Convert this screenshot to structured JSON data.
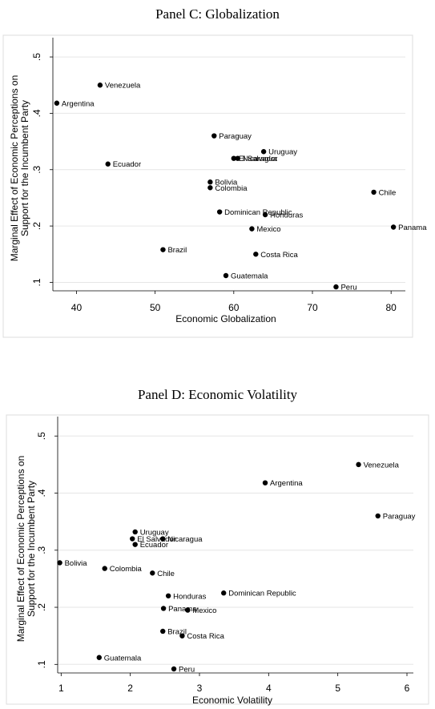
{
  "chart_data": [
    {
      "type": "scatter",
      "title": "Panel C: Globalization",
      "xlabel": "Economic Globalization",
      "ylabel": "Marginal Effect of Economic Perceptions on Support for the Incumbent Party",
      "xlim": [
        37,
        81
      ],
      "ylim": [
        0.085,
        0.52
      ],
      "xticks": [
        "40",
        "50",
        "60",
        "70",
        "80"
      ],
      "xtick_values": [
        40,
        50,
        60,
        70,
        80
      ],
      "yticks": [
        ".1",
        ".2",
        ".3",
        ".4",
        ".5"
      ],
      "ytick_values": [
        0.1,
        0.2,
        0.3,
        0.4,
        0.5
      ],
      "grid": true,
      "points": [
        {
          "label": "Venezuela",
          "x": 43.0,
          "y": 0.45
        },
        {
          "label": "Argentina",
          "x": 37.5,
          "y": 0.418
        },
        {
          "label": "Paraguay",
          "x": 57.5,
          "y": 0.36
        },
        {
          "label": "Uruguay",
          "x": 63.8,
          "y": 0.332
        },
        {
          "label": "El Salvador",
          "x": 60.0,
          "y": 0.32
        },
        {
          "label": "Nicaragua",
          "x": 60.5,
          "y": 0.32
        },
        {
          "label": "Ecuador",
          "x": 44.0,
          "y": 0.31
        },
        {
          "label": "Bolivia",
          "x": 57.0,
          "y": 0.278
        },
        {
          "label": "Colombia",
          "x": 57.0,
          "y": 0.268
        },
        {
          "label": "Chile",
          "x": 77.8,
          "y": 0.26
        },
        {
          "label": "Dominican Republic",
          "x": 58.2,
          "y": 0.225
        },
        {
          "label": "Honduras",
          "x": 64.0,
          "y": 0.22
        },
        {
          "label": "Mexico",
          "x": 62.3,
          "y": 0.195
        },
        {
          "label": "Panama",
          "x": 80.3,
          "y": 0.198
        },
        {
          "label": "Brazil",
          "x": 51.0,
          "y": 0.158
        },
        {
          "label": "Costa Rica",
          "x": 62.8,
          "y": 0.15
        },
        {
          "label": "Guatemala",
          "x": 59.0,
          "y": 0.112
        },
        {
          "label": "Peru",
          "x": 73.0,
          "y": 0.092
        }
      ]
    },
    {
      "type": "scatter",
      "title": "Panel D: Economic Volatility",
      "xlabel": "Economic Volatility",
      "ylabel": "Marginal Effect of Economic Perceptions on Support for the Incumbent Party",
      "xlim": [
        0.95,
        6.0
      ],
      "ylim": [
        0.085,
        0.52
      ],
      "xticks": [
        "1",
        "2",
        "3",
        "4",
        "5",
        "6"
      ],
      "xtick_values": [
        1,
        2,
        3,
        4,
        5,
        6
      ],
      "yticks": [
        ".1",
        ".2",
        ".3",
        ".4",
        ".5"
      ],
      "ytick_values": [
        0.1,
        0.2,
        0.3,
        0.4,
        0.5
      ],
      "grid": true,
      "points": [
        {
          "label": "Venezuela",
          "x": 5.3,
          "y": 0.45
        },
        {
          "label": "Argentina",
          "x": 3.95,
          "y": 0.418
        },
        {
          "label": "Paraguay",
          "x": 5.58,
          "y": 0.36
        },
        {
          "label": "Uruguay",
          "x": 2.07,
          "y": 0.332
        },
        {
          "label": "El Salvador",
          "x": 2.03,
          "y": 0.32
        },
        {
          "label": "Nicaragua",
          "x": 2.47,
          "y": 0.32
        },
        {
          "label": "Ecuador",
          "x": 2.07,
          "y": 0.31
        },
        {
          "label": "Bolivia",
          "x": 0.98,
          "y": 0.278
        },
        {
          "label": "Colombia",
          "x": 1.63,
          "y": 0.268
        },
        {
          "label": "Chile",
          "x": 2.32,
          "y": 0.26
        },
        {
          "label": "Dominican Republic",
          "x": 3.35,
          "y": 0.225
        },
        {
          "label": "Honduras",
          "x": 2.55,
          "y": 0.22
        },
        {
          "label": "Panama",
          "x": 2.48,
          "y": 0.198
        },
        {
          "label": "Mexico",
          "x": 2.83,
          "y": 0.195
        },
        {
          "label": "Brazil",
          "x": 2.47,
          "y": 0.158
        },
        {
          "label": "Costa Rica",
          "x": 2.75,
          "y": 0.15
        },
        {
          "label": "Guatemala",
          "x": 1.55,
          "y": 0.112
        },
        {
          "label": "Peru",
          "x": 2.63,
          "y": 0.092
        }
      ]
    }
  ]
}
